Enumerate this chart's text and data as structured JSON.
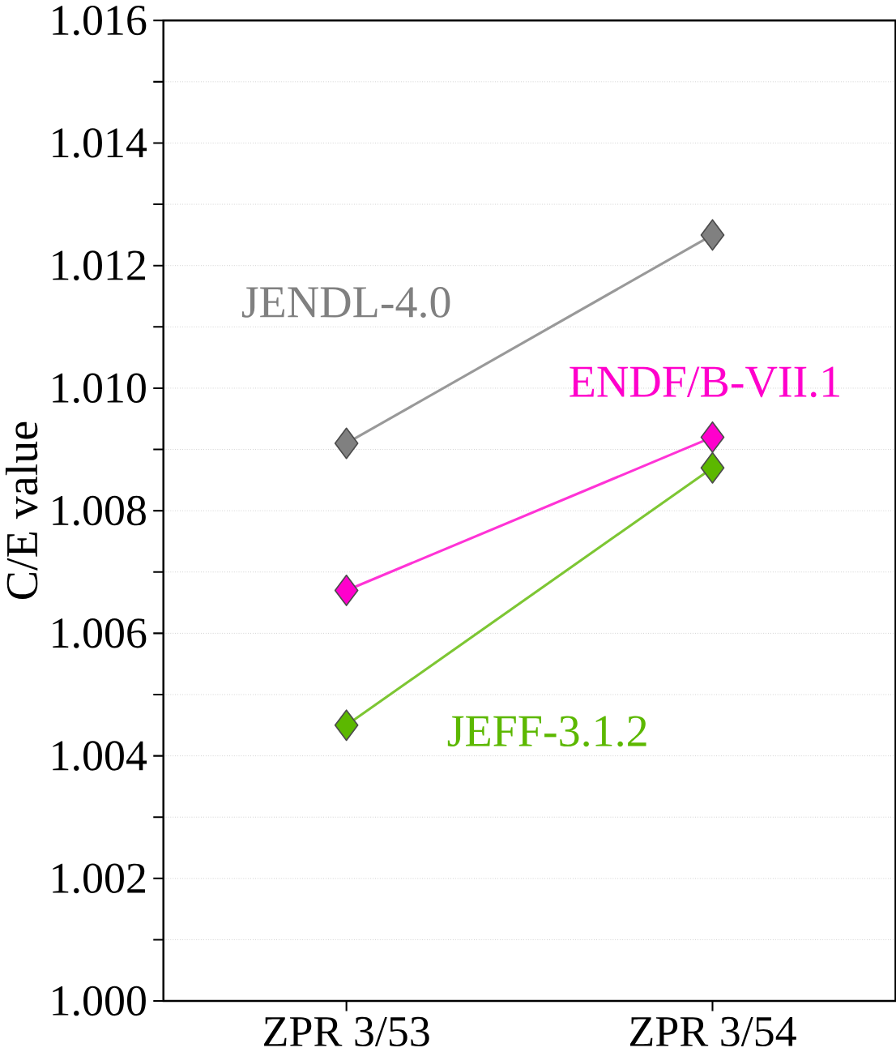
{
  "chart_data": {
    "type": "line",
    "ylabel": "C/E value",
    "categories": [
      "ZPR 3/53",
      "ZPR 3/54"
    ],
    "series": [
      {
        "name": "JENDL-4.0",
        "color": "#808080",
        "values": [
          1.0091,
          1.0125
        ]
      },
      {
        "name": "ENDF/B-VII.1",
        "color": "#ff00cc",
        "values": [
          1.0067,
          1.0092
        ]
      },
      {
        "name": "JEFF-3.1.2",
        "color": "#5cb800",
        "values": [
          1.0045,
          1.0087
        ]
      }
    ],
    "ylim": [
      1.0,
      1.016
    ],
    "yticks": [
      {
        "value": 1.0,
        "label": "1.000"
      },
      {
        "value": 1.001,
        "label": null
      },
      1.002,
      {
        "value": 1.003,
        "label": null
      },
      1.004,
      {
        "value": 1.005,
        "label": null
      },
      1.006,
      {
        "value": 1.007,
        "label": null
      },
      1.008,
      {
        "value": 1.009,
        "label": null
      },
      {
        "value": 1.01,
        "label": "1.010"
      },
      {
        "value": 1.011,
        "label": null
      },
      1.012,
      {
        "value": 1.013,
        "label": null
      },
      1.014,
      {
        "value": 1.015,
        "label": null
      },
      1.016
    ],
    "grid": "y",
    "legend": false,
    "marker": "diamond",
    "line_style": "solid"
  }
}
